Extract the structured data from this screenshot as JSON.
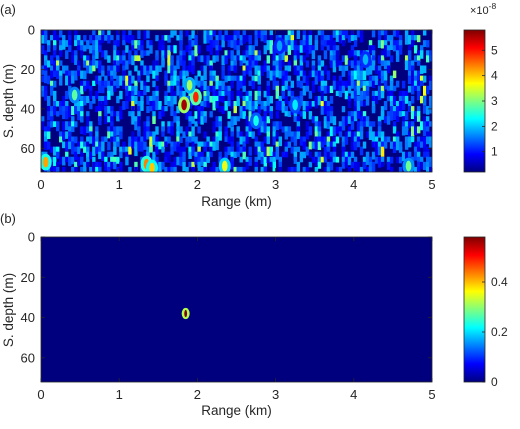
{
  "colors": {
    "background": "#00007f",
    "colormap": [
      "#00007f",
      "#0000ff",
      "#007fff",
      "#00ffff",
      "#7fff7f",
      "#ffff00",
      "#ff7f00",
      "#ff0000",
      "#7f0000"
    ],
    "axis": "#262626"
  },
  "chart_data": [
    {
      "type": "heatmap",
      "panel_label": "(a)",
      "xlabel": "Range (km)",
      "ylabel": "S. depth (m)",
      "xlim": [
        0,
        5
      ],
      "ylim": [
        0,
        72
      ],
      "y_reversed": true,
      "xticks": [
        "0",
        "1",
        "2",
        "3",
        "4",
        "5"
      ],
      "yticks": [
        "0",
        "20",
        "40",
        "60"
      ],
      "colorbar": {
        "ticks": [
          "1",
          "2",
          "3",
          "4",
          "5"
        ],
        "tick_values": [
          1,
          2,
          3,
          4,
          5
        ],
        "range": [
          0.2,
          5.8
        ],
        "exponent": "×10",
        "exponent_power": "-8",
        "scale": 1e-08
      },
      "hotspots": [
        {
          "range_km": 1.83,
          "depth_m": 38,
          "value": 5.6
        },
        {
          "range_km": 1.98,
          "depth_m": 34,
          "value": 4.9
        },
        {
          "range_km": 1.9,
          "depth_m": 28,
          "value": 3.2
        },
        {
          "range_km": 0.06,
          "depth_m": 67,
          "value": 4.2
        },
        {
          "range_km": 0.43,
          "depth_m": 33,
          "value": 2.8
        },
        {
          "range_km": 1.35,
          "depth_m": 68,
          "value": 4.4
        },
        {
          "range_km": 1.42,
          "depth_m": 70,
          "value": 4.0
        },
        {
          "range_km": 2.35,
          "depth_m": 69,
          "value": 3.6
        },
        {
          "range_km": 2.75,
          "depth_m": 46,
          "value": 2.4
        },
        {
          "range_km": 3.25,
          "depth_m": 38,
          "value": 2.2
        },
        {
          "range_km": 4.7,
          "depth_m": 69,
          "value": 2.9
        },
        {
          "range_km": 3.05,
          "depth_m": 8,
          "value": 1.8
        },
        {
          "range_km": 4.15,
          "depth_m": 15,
          "value": 1.9
        }
      ]
    },
    {
      "type": "heatmap",
      "panel_label": "(b)",
      "xlabel": "Range (km)",
      "ylabel": "S. depth (m)",
      "xlim": [
        0,
        5
      ],
      "ylim": [
        0,
        72
      ],
      "y_reversed": true,
      "xticks": [
        "0",
        "1",
        "2",
        "3",
        "4",
        "5"
      ],
      "yticks": [
        "0",
        "20",
        "40",
        "60"
      ],
      "colorbar": {
        "ticks": [
          "0",
          "0.2",
          "0.4"
        ],
        "tick_values": [
          0,
          0.2,
          0.4
        ],
        "range": [
          0,
          0.58
        ]
      },
      "hotspots": [
        {
          "range_km": 1.85,
          "depth_m": 38,
          "value": 0.58
        }
      ]
    }
  ]
}
